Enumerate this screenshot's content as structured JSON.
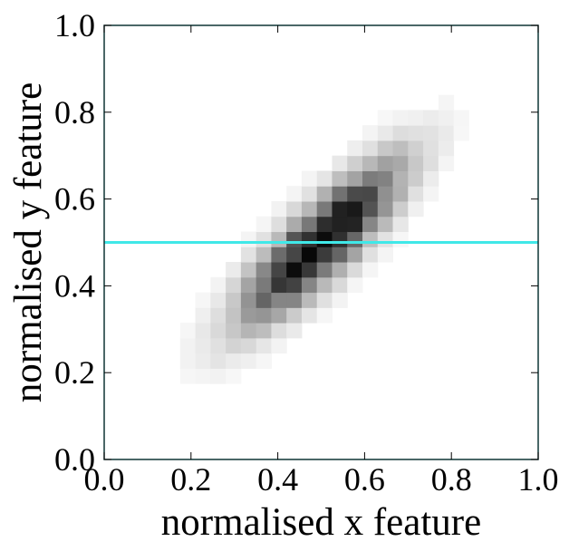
{
  "chart_data": {
    "type": "heatmap",
    "title": "",
    "xlabel": "normalised x feature",
    "ylabel": "normalised y feature",
    "xlim": [
      0.0,
      1.0
    ],
    "ylim": [
      0.0,
      1.0
    ],
    "xticks": [
      "0.0",
      "0.2",
      "0.4",
      "0.6",
      "0.8",
      "1.0"
    ],
    "yticks": [
      "0.0",
      "0.2",
      "0.4",
      "0.6",
      "0.8",
      "1.0"
    ],
    "colormap": "greys",
    "grid": false,
    "bin_width": 0.035,
    "distribution": {
      "kind": "correlated 2D histogram",
      "center": [
        0.5,
        0.5
      ],
      "std_major": 0.17,
      "std_minor": 0.05,
      "major_axis_angle_deg": 45
    },
    "reference_line": {
      "orientation": "horizontal",
      "y": 0.5,
      "color": "#40e8e8"
    },
    "frame_color": "#0e3535"
  }
}
